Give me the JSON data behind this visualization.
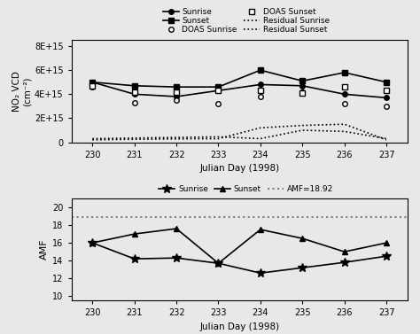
{
  "days": [
    230,
    231,
    232,
    233,
    234,
    235,
    236,
    237
  ],
  "sunrise_vcd": [
    5000000000000000.0,
    4000000000000000.0,
    3800000000000000.0,
    4300000000000000.0,
    4800000000000000.0,
    4700000000000000.0,
    4000000000000000.0,
    3700000000000000.0
  ],
  "sunset_vcd": [
    5000000000000000.0,
    4700000000000000.0,
    4600000000000000.0,
    4600000000000000.0,
    6000000000000000.0,
    5100000000000000.0,
    5800000000000000.0,
    5000000000000000.0
  ],
  "doas_sunrise": [
    4600000000000000.0,
    3300000000000000.0,
    3500000000000000.0,
    3200000000000000.0,
    3800000000000000.0,
    4200000000000000.0,
    3200000000000000.0,
    3000000000000000.0
  ],
  "doas_sunset": [
    4700000000000000.0,
    4200000000000000.0,
    4200000000000000.0,
    4300000000000000.0,
    4300000000000000.0,
    4100000000000000.0,
    4600000000000000.0,
    4300000000000000.0
  ],
  "residual_sunrise": [
    200000000000000.0,
    250000000000000.0,
    280000000000000.0,
    300000000000000.0,
    1200000000000000.0,
    1400000000000000.0,
    1500000000000000.0,
    200000000000000.0
  ],
  "residual_sunset": [
    300000000000000.0,
    350000000000000.0,
    400000000000000.0,
    450000000000000.0,
    300000000000000.0,
    1000000000000000.0,
    900000000000000.0,
    300000000000000.0
  ],
  "amf_sunrise": [
    16.0,
    14.2,
    14.3,
    13.7,
    12.6,
    13.2,
    13.8,
    14.5
  ],
  "amf_sunset": [
    16.0,
    17.0,
    17.6,
    13.7,
    17.5,
    16.5,
    15.0,
    16.0
  ],
  "amf_line": 18.92,
  "xlim": [
    229.5,
    237.5
  ],
  "xticks": [
    230,
    231,
    232,
    233,
    234,
    235,
    236,
    237
  ],
  "ylim_vcd": [
    0,
    8500000000000000.0
  ],
  "yticks_vcd": [
    0,
    2000000000000000.0,
    4000000000000000.0,
    6000000000000000.0,
    8000000000000000.0
  ],
  "ytick_labels_vcd": [
    "0",
    "2E+15",
    "4E+15",
    "6E+15",
    "8E+15"
  ],
  "ylim_amf": [
    9.5,
    21
  ],
  "yticks_amf": [
    10,
    12,
    14,
    16,
    18,
    20
  ],
  "xlabel": "Julian Day (1998)",
  "ylabel_vcd": "NO₂ VCD\n(cm⁻²)",
  "ylabel_amf": "AMF",
  "fig_facecolor": "#e8e8e8"
}
